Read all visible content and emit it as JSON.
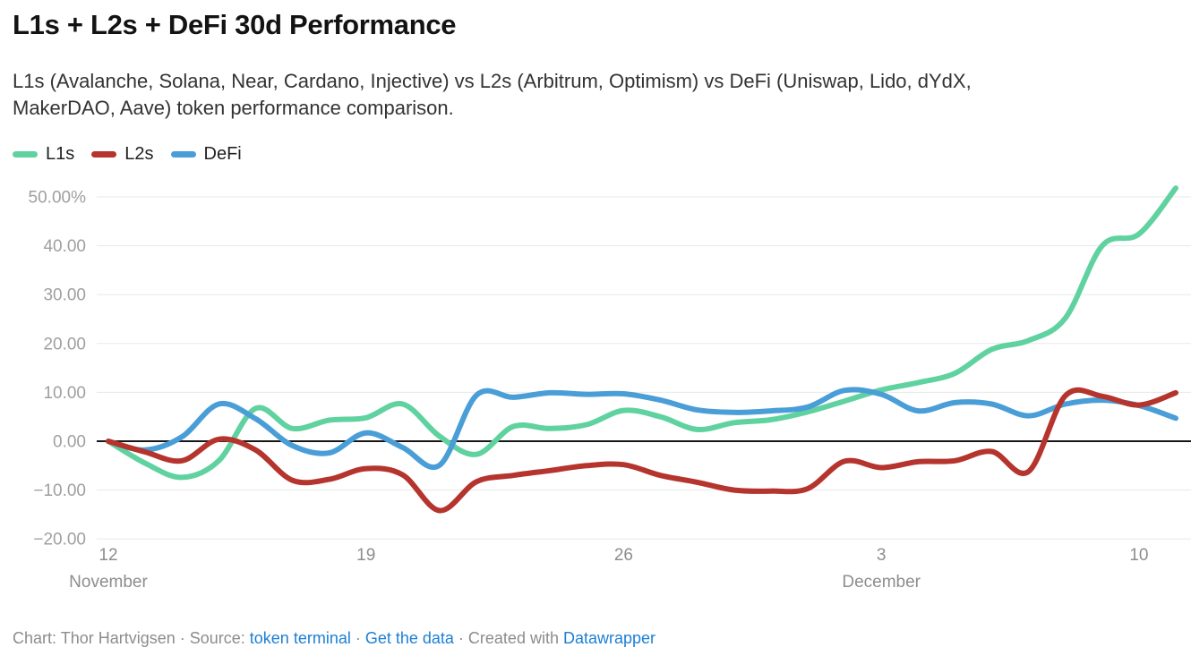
{
  "header": {
    "title": "L1s + L2s + DeFi 30d Performance",
    "subtitle_lines": [
      "L1s (Avalanche, Solana, Near, Cardano, Injective) vs L2s (Arbitrum, Optimism) vs DeFi (Uniswap, Lido, dYdX,",
      "MakerDAO, Aave) token performance comparison."
    ]
  },
  "colors": {
    "l1s_green": "#5fd2a0",
    "l2s_red": "#b5342d",
    "defi_blue": "#4a9ed7",
    "zero_line": "#161616",
    "gridline": "#e8e8e8",
    "axis_label_gray": "#9f9f9f",
    "footer_gray": "#8c8c8c",
    "link_blue": "#1d7fd4"
  },
  "chart_data": {
    "type": "line",
    "title": "L1s + L2s + DeFi 30d Performance",
    "x_unit": "day",
    "x_count": 30,
    "x_range": [
      "Nov 12",
      "Dec 11"
    ],
    "ylim": [
      -20,
      55
    ],
    "grid": "horizontal",
    "legend_position": "top-left",
    "unit": "%",
    "y_ticks": [
      {
        "value": 50,
        "label": "50.00%"
      },
      {
        "value": 40,
        "label": "40.00"
      },
      {
        "value": 30,
        "label": "30.00"
      },
      {
        "value": 20,
        "label": "20.00"
      },
      {
        "value": 10,
        "label": "10.00"
      },
      {
        "value": 0,
        "label": "0.00"
      },
      {
        "value": -10,
        "label": "−10.00"
      },
      {
        "value": -20,
        "label": "−20.00"
      }
    ],
    "x_ticks": [
      {
        "index": 0,
        "label": "12"
      },
      {
        "index": 7,
        "label": "19"
      },
      {
        "index": 14,
        "label": "26"
      },
      {
        "index": 21,
        "label": "3"
      },
      {
        "index": 28,
        "label": "10"
      }
    ],
    "x_month_labels": [
      {
        "index": 0,
        "label": "November"
      },
      {
        "index": 21,
        "label": "December"
      }
    ],
    "series": [
      {
        "name": "L1s",
        "color": "#5fd2a0",
        "values": [
          0,
          -4.5,
          -7.4,
          -4.0,
          6.7,
          2.6,
          4.3,
          4.8,
          7.6,
          1.0,
          -2.7,
          3.0,
          2.6,
          3.4,
          6.3,
          5.0,
          2.4,
          3.8,
          4.4,
          6.0,
          8.2,
          10.5,
          12.0,
          13.9,
          18.8,
          20.6,
          25.2,
          40.0,
          42.4,
          51.8
        ]
      },
      {
        "name": "L2s",
        "color": "#b5342d",
        "values": [
          0,
          -2.2,
          -4.0,
          0.4,
          -1.8,
          -8.0,
          -7.8,
          -5.6,
          -6.9,
          -14.2,
          -8.3,
          -7.0,
          -6.0,
          -5.0,
          -4.8,
          -7.0,
          -8.4,
          -10.0,
          -10.2,
          -9.7,
          -4.1,
          -5.4,
          -4.2,
          -4.0,
          -2.1,
          -6.2,
          9.3,
          9.2,
          7.4,
          9.9
        ]
      },
      {
        "name": "DeFi",
        "color": "#4a9ed7",
        "values": [
          0,
          -1.8,
          0.9,
          7.6,
          4.6,
          -0.9,
          -2.4,
          1.7,
          -1.3,
          -4.9,
          9.4,
          9.0,
          9.9,
          9.6,
          9.7,
          8.4,
          6.4,
          5.9,
          6.2,
          7.0,
          10.4,
          9.6,
          6.2,
          7.9,
          7.6,
          5.2,
          7.6,
          8.4,
          7.3,
          4.7
        ]
      }
    ],
    "draw_order": [
      "L1s",
      "DeFi",
      "L2s"
    ]
  },
  "footer": {
    "segments": [
      {
        "text": "Chart: Thor Hartvigsen · Source: ",
        "link": false
      },
      {
        "text": "token terminal",
        "link": true
      },
      {
        "text": " · ",
        "link": false
      },
      {
        "text": "Get the data",
        "link": true
      },
      {
        "text": " · Created with ",
        "link": false
      },
      {
        "text": "Datawrapper",
        "link": true
      }
    ]
  }
}
